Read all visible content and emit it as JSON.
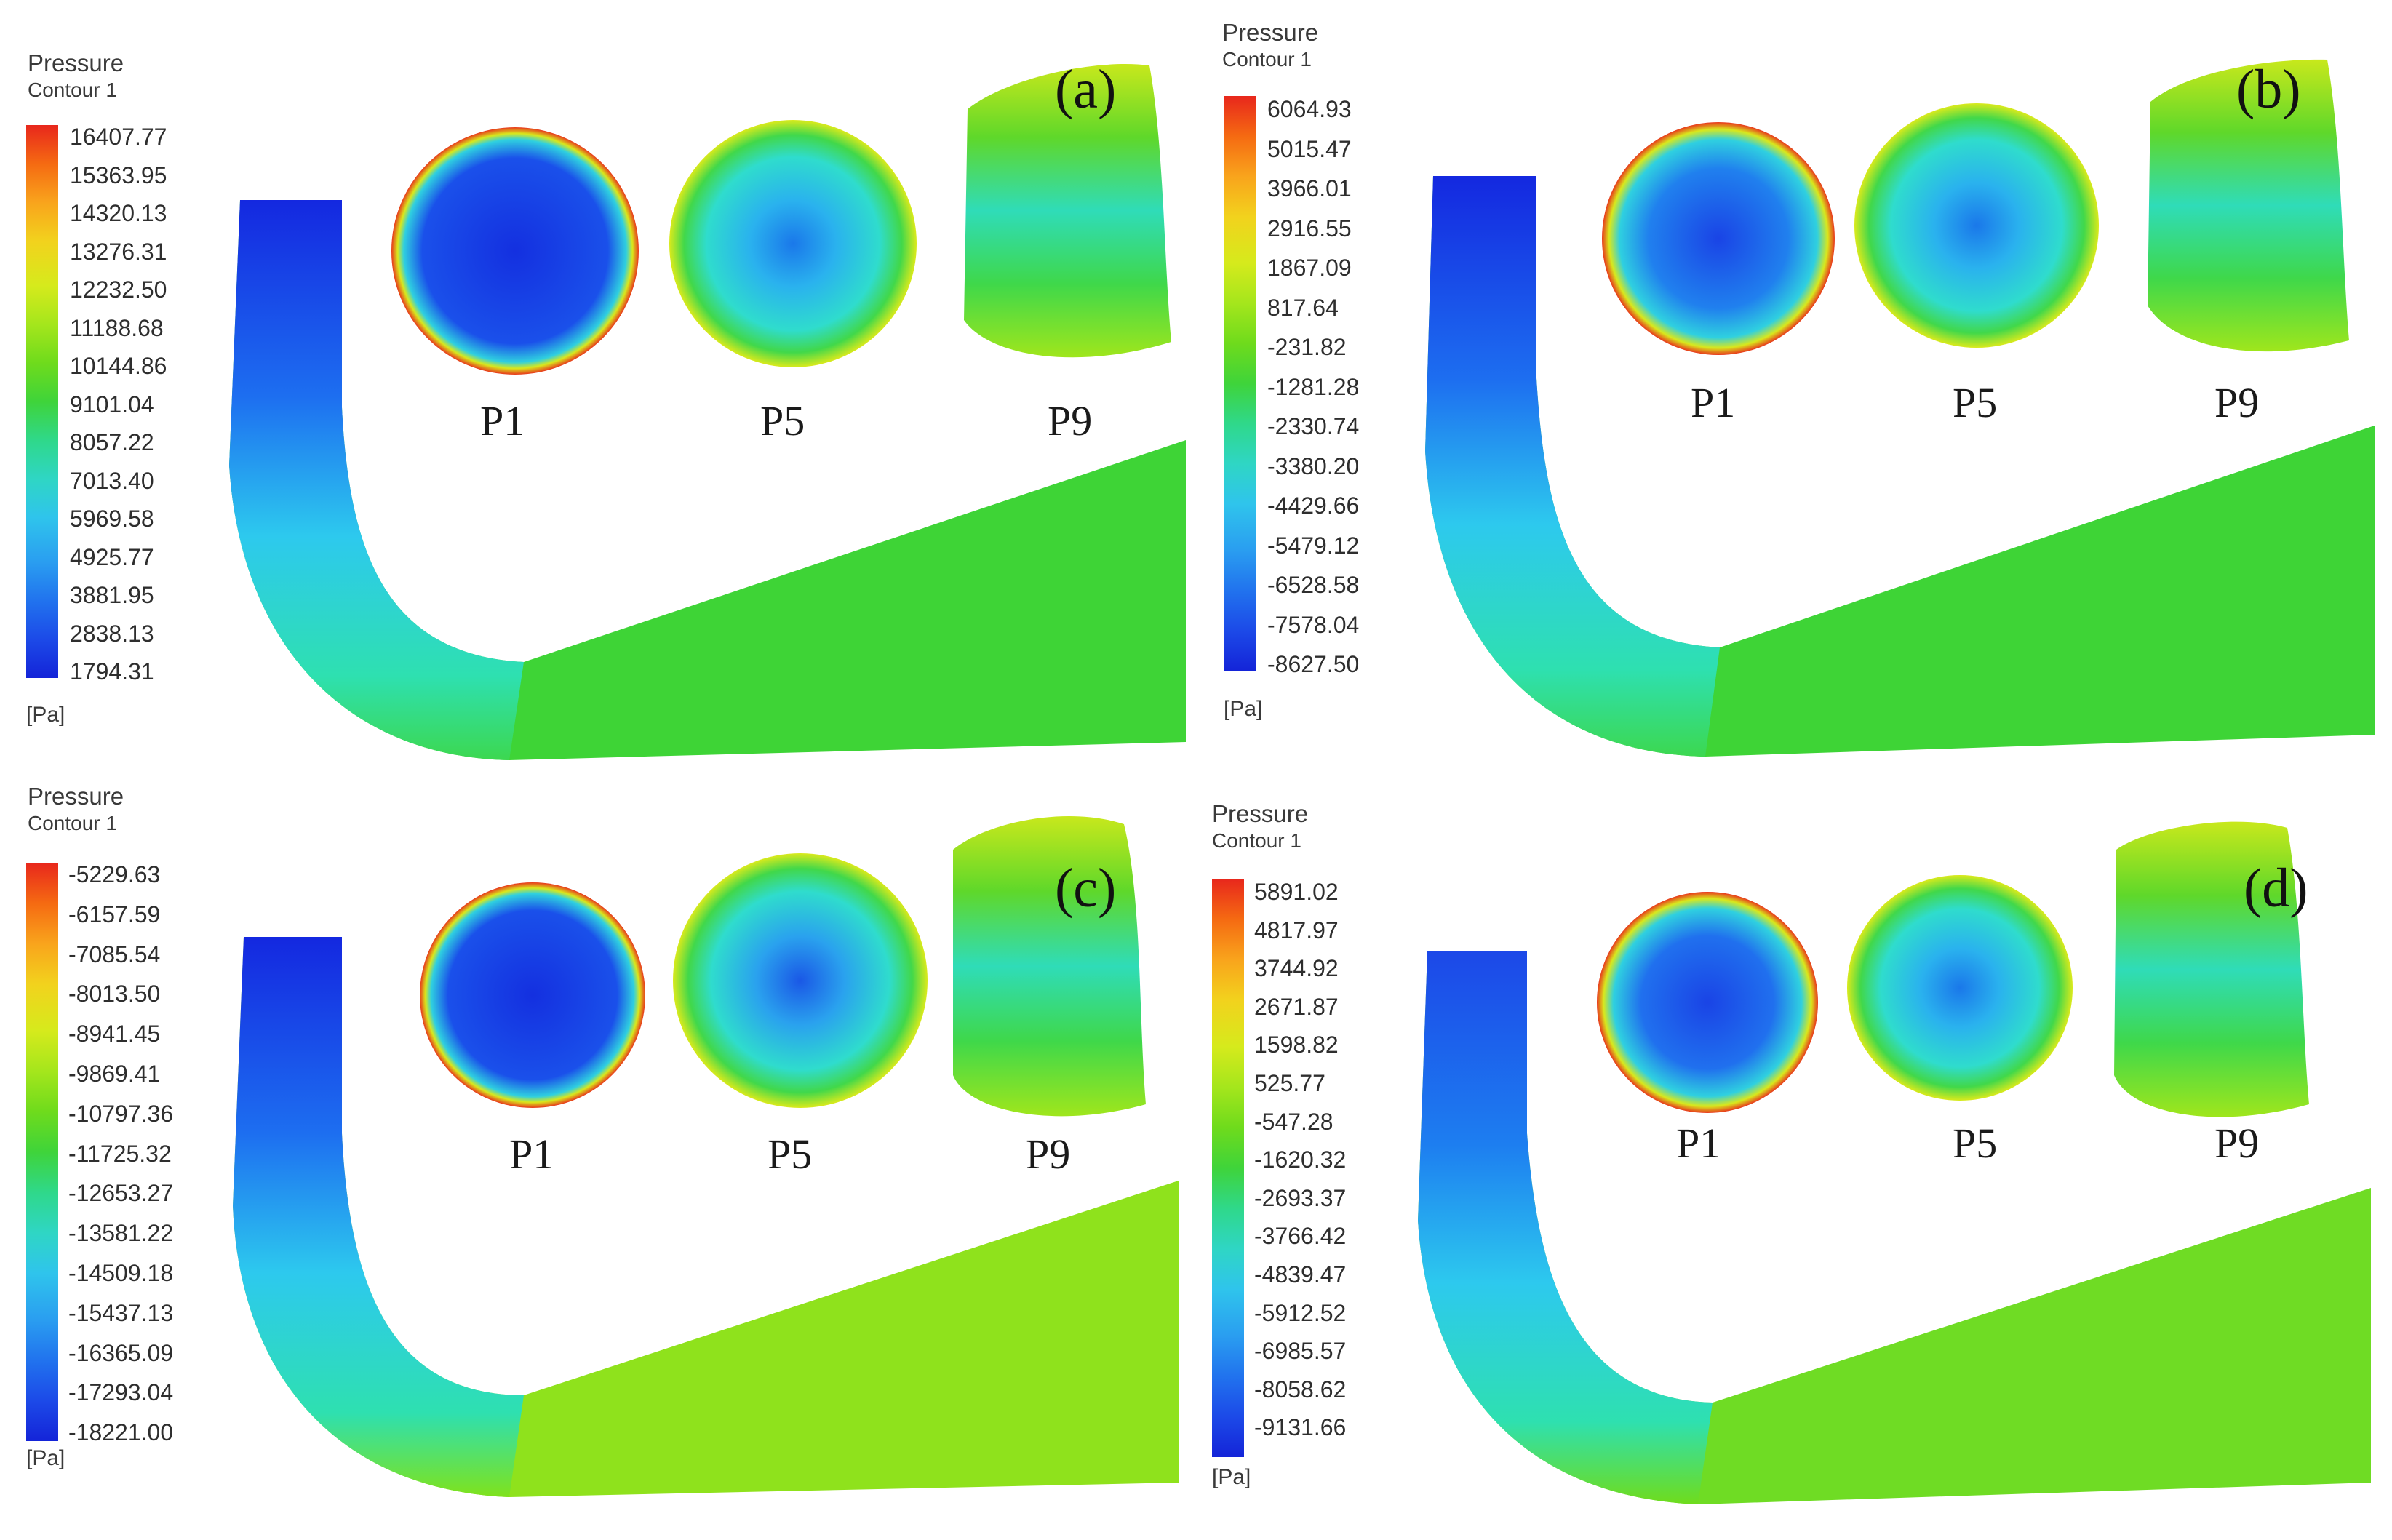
{
  "panels": [
    {
      "letter": "(a)",
      "legend_title": "Pressure",
      "legend_subtitle": "Contour 1",
      "unit": "[Pa]",
      "ticks": [
        "16407.77",
        "15363.95",
        "14320.13",
        "13276.31",
        "12232.50",
        "11188.68",
        "10144.86",
        "9101.04",
        "8057.22",
        "7013.40",
        "5969.58",
        "4925.77",
        "3881.95",
        "2838.13",
        "1794.31"
      ],
      "sections": [
        "P1",
        "P5",
        "P9"
      ]
    },
    {
      "letter": "(b)",
      "legend_title": "Pressure",
      "legend_subtitle": "Contour 1",
      "unit": "[Pa]",
      "ticks": [
        "6064.93",
        "5015.47",
        "3966.01",
        "2916.55",
        "1867.09",
        "817.64",
        "-231.82",
        "-1281.28",
        "-2330.74",
        "-3380.20",
        "-4429.66",
        "-5479.12",
        "-6528.58",
        "-7578.04",
        "-8627.50"
      ],
      "sections": [
        "P1",
        "P5",
        "P9"
      ]
    },
    {
      "letter": "(c)",
      "legend_title": "Pressure",
      "legend_subtitle": "Contour 1",
      "unit": "[Pa]",
      "ticks": [
        "-5229.63",
        "-6157.59",
        "-7085.54",
        "-8013.50",
        "-8941.45",
        "-9869.41",
        "-10797.36",
        "-11725.32",
        "-12653.27",
        "-13581.22",
        "-14509.18",
        "-15437.13",
        "-16365.09",
        "-17293.04",
        "-18221.00"
      ],
      "sections": [
        "P1",
        "P5",
        "P9"
      ]
    },
    {
      "letter": "(d)",
      "legend_title": "Pressure",
      "legend_subtitle": "Contour 1",
      "unit": "[Pa]",
      "ticks": [
        "5891.02",
        "4817.97",
        "3744.92",
        "2671.87",
        "1598.82",
        "525.77",
        "-547.28",
        "-1620.32",
        "-2693.37",
        "-3766.42",
        "-4839.47",
        "-5912.52",
        "-6985.57",
        "-8058.62",
        "-9131.66"
      ],
      "sections": [
        "P1",
        "P5",
        "P9"
      ]
    }
  ],
  "colors": {
    "legend_scale": [
      "#e8271c",
      "#f56a12",
      "#f9a41c",
      "#f2d21d",
      "#d6ea1c",
      "#a5e61c",
      "#6fdb1c",
      "#3fd43a",
      "#2fd88a",
      "#2fd6c4",
      "#2fc4ec",
      "#2a9ef0",
      "#2173ee",
      "#1c4ae8",
      "#1424d8"
    ],
    "high": "#e8271c",
    "mid": "#4cd828",
    "low": "#1424d8"
  }
}
